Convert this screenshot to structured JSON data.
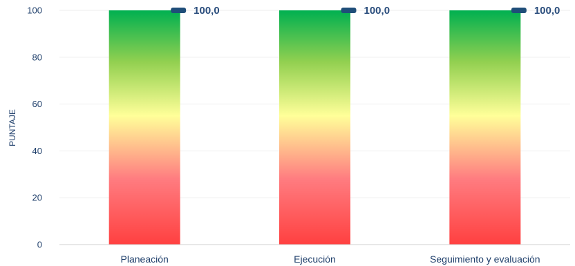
{
  "chart_data": {
    "type": "bar",
    "categories": [
      "Planeación",
      "Ejecución",
      "Seguimiento y evaluación"
    ],
    "values": [
      100,
      100,
      100
    ],
    "data_labels": [
      "100,0",
      "100,0",
      "100,0"
    ],
    "ylabel": "PUNTAJE",
    "xlabel": "",
    "ylim": [
      0,
      100
    ],
    "yticks": [
      0,
      20,
      40,
      60,
      80,
      100
    ],
    "grid": true,
    "bar_gradient": {
      "top": "#00b050",
      "upper": "#92d050",
      "middle": "#ffff99",
      "lower": "#ff7c80",
      "bottom": "#ff4040"
    },
    "marker_color": "#1f4e79",
    "label_color": "#2b4e7d"
  }
}
